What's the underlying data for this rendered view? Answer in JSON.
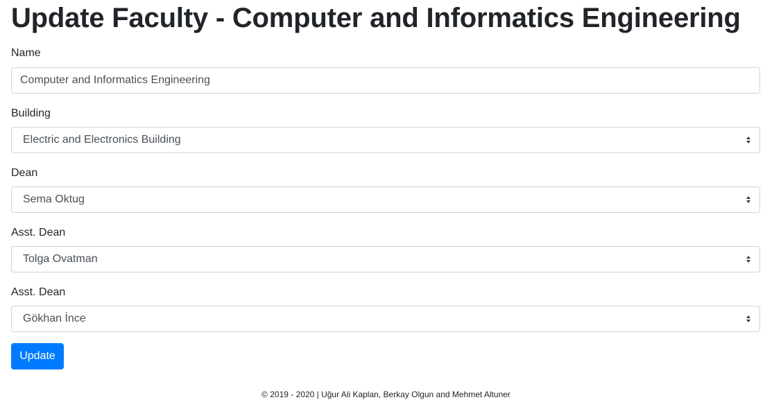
{
  "page": {
    "title": "Update Faculty - Computer and Informatics Engineering"
  },
  "form": {
    "name": {
      "label": "Name",
      "value": "Computer and Informatics Engineering"
    },
    "building": {
      "label": "Building",
      "selected": "Electric and Electronics Building"
    },
    "dean": {
      "label": "Dean",
      "selected": "Sema Oktug"
    },
    "asst_dean_1": {
      "label": "Asst. Dean",
      "selected": "Tolga Ovatman"
    },
    "asst_dean_2": {
      "label": "Asst. Dean",
      "selected": "Gökhan İnce"
    },
    "submit_label": "Update"
  },
  "footer": {
    "text": "© 2019 - 2020 | Uğur Ali Kaplan, Berkay Olgun and Mehmet Altuner"
  },
  "colors": {
    "primary": "#007bff",
    "text": "#212529",
    "input_text": "#495057",
    "border": "#ced4da"
  },
  "icons": {
    "select_caret": "chevron-updown-icon"
  }
}
